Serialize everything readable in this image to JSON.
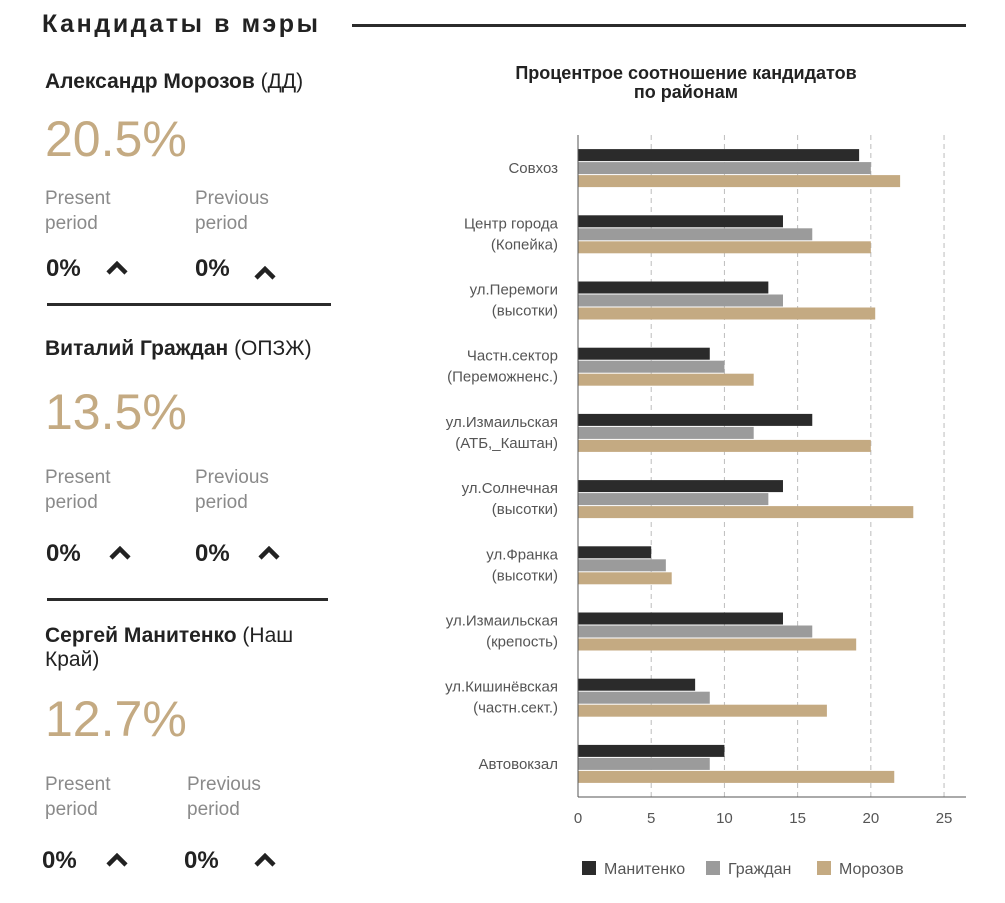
{
  "header": {
    "title": "Кандидаты в мэры"
  },
  "candidates": [
    {
      "name_bold": "Александр Морозов",
      "name_rest": " (ДД)",
      "percent": "20.5%",
      "present_label": "Present period",
      "present_value": "0%",
      "previous_label": "Previous period",
      "previous_value": "0%"
    },
    {
      "name_bold": "Виталий Граждан",
      "name_rest": " (ОПЗЖ)",
      "percent": "13.5%",
      "present_label": "Present period",
      "present_value": "0%",
      "previous_label": "Previous period",
      "previous_value": "0%"
    },
    {
      "name_bold": "Сергей Манитенко",
      "name_rest": " (Наш Край)",
      "percent": "12.7%",
      "present_label": "Present period",
      "present_value": "0%",
      "previous_label": "Previous period",
      "previous_value": "0%"
    }
  ],
  "icons": {
    "trend": "caret-up-icon"
  },
  "colors": {
    "accent": "#c4aa82",
    "manitenko": "#2b2b2b",
    "grazhdan": "#9b9b9b",
    "morozov": "#c4aa82"
  },
  "chart_data": {
    "type": "bar",
    "orientation": "horizontal",
    "title": "Процентрое соотношение кандидатов по районам",
    "categories": [
      "Совхоз",
      "Центр города (Копейка)",
      "ул.Перемоги (высотки)",
      "Частн.сектор (Переможненс.)",
      "ул.Измаильская (АТБ,_Каштан)",
      "ул.Солнечная (высотки)",
      "ул.Франка (высотки)",
      "ул.Измаильская (крепость)",
      "ул.Кишинёвская (частн.сект.)",
      "Автовокзал"
    ],
    "series": [
      {
        "name": "Манитенко",
        "color": "#2b2b2b",
        "values": [
          19.2,
          14,
          13,
          9,
          16,
          14,
          5,
          14,
          8,
          10
        ]
      },
      {
        "name": "Граждан",
        "color": "#9b9b9b",
        "values": [
          20,
          16,
          14,
          10,
          12,
          13,
          6,
          16,
          9,
          9
        ]
      },
      {
        "name": "Морозов",
        "color": "#c4aa82",
        "values": [
          22,
          20,
          20.3,
          12,
          20,
          22.9,
          6.4,
          19,
          17,
          21.6
        ]
      }
    ],
    "xlim": [
      0,
      26
    ],
    "xticks": [
      0,
      5,
      10,
      15,
      20,
      25
    ],
    "grid": true,
    "legend": "bottom"
  }
}
